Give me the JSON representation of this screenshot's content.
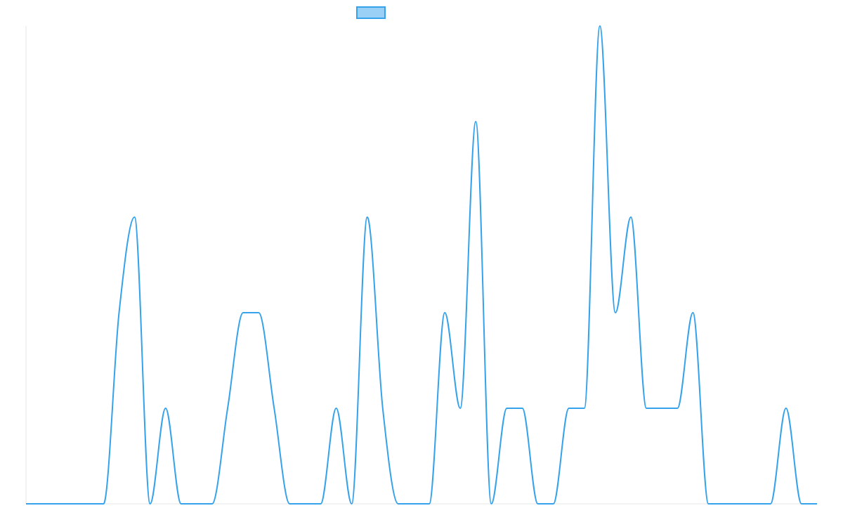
{
  "chart_data": {
    "type": "line",
    "x": [
      0,
      1,
      2,
      3,
      4,
      5,
      6,
      7,
      8,
      9,
      10,
      11,
      12,
      13,
      14,
      15,
      16,
      17,
      18,
      19,
      20,
      21,
      22,
      23,
      24,
      25,
      26,
      27,
      28,
      29,
      30,
      31,
      32,
      33,
      34,
      35,
      36,
      37,
      38,
      39,
      40,
      41,
      42,
      43,
      44,
      45,
      46,
      47,
      48,
      49,
      50,
      51
    ],
    "series": [
      {
        "name": "",
        "color": "#36a2eb",
        "fill": "#9ad0f5",
        "values": [
          0,
          0,
          0,
          0,
          0,
          0,
          2,
          3,
          0,
          1,
          0,
          0,
          0,
          1,
          2,
          2,
          1,
          0,
          0,
          0,
          1,
          0,
          3,
          1,
          0,
          0,
          0,
          2,
          1,
          4,
          0,
          1,
          1,
          0,
          0,
          1,
          1,
          5,
          2,
          3,
          1,
          1,
          1,
          2,
          0,
          0,
          0,
          0,
          0,
          1,
          0,
          0
        ]
      }
    ],
    "ylim": [
      0,
      5
    ],
    "xgrid": false,
    "ygrid": false,
    "legend": "top-center"
  }
}
